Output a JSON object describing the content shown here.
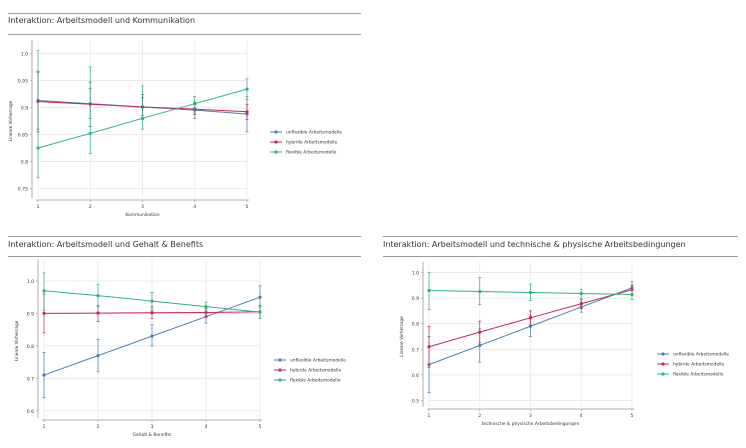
{
  "colors": {
    "unflexible": "#4a7fb4",
    "hybride": "#c9245b",
    "flexible": "#2db37a",
    "grid": "#e6e6e6",
    "axis": "#999999"
  },
  "chart_data": [
    {
      "type": "line",
      "title": "Interaktion: Arbeitsmodell und Kommunikation",
      "xlabel": "Kommunikation",
      "ylabel": "Lineare Vorhersage",
      "x": [
        1,
        2,
        3,
        4,
        5
      ],
      "x_ticks": [
        "1",
        "2",
        "3",
        "4",
        "5"
      ],
      "ylim": [
        0.74,
        1.01
      ],
      "y_ticks": [
        0.75,
        0.8,
        0.85,
        0.9,
        0.95,
        1.0
      ],
      "y_tick_labels": [
        "0.75",
        "0.8",
        "0.85",
        "0.9",
        "0.95",
        "1.0"
      ],
      "grid": true,
      "legend_position": "right",
      "series": [
        {
          "name": "unflexible Arbeitsmodelle",
          "color_key": "unflexible",
          "values": [
            0.913,
            0.907,
            0.901,
            0.895,
            0.888
          ],
          "ci_low": [
            0.86,
            0.88,
            0.885,
            0.88,
            0.855
          ],
          "ci_high": [
            0.965,
            0.935,
            0.918,
            0.91,
            0.92
          ]
        },
        {
          "name": "hybride Arbeitsmodelle",
          "color_key": "hybride",
          "values": [
            0.911,
            0.906,
            0.901,
            0.897,
            0.892
          ],
          "ci_low": [
            0.855,
            0.865,
            0.878,
            0.887,
            0.878
          ],
          "ci_high": [
            0.967,
            0.947,
            0.924,
            0.908,
            0.906
          ]
        },
        {
          "name": "flexible Arbeitsmodelle",
          "color_key": "flexible",
          "values": [
            0.825,
            0.852,
            0.88,
            0.907,
            0.934
          ],
          "ci_low": [
            0.77,
            0.815,
            0.86,
            0.89,
            0.915
          ],
          "ci_high": [
            1.005,
            0.975,
            0.94,
            0.92,
            0.953
          ]
        }
      ]
    },
    {
      "type": "line",
      "title": "Interaktion: Arbeitsmodell und Gehalt & Benefits",
      "xlabel": "Gehalt & Benefits",
      "ylabel": "Lineare Vorhersage",
      "x": [
        1,
        2,
        3,
        4,
        5
      ],
      "x_ticks": [
        "1",
        "2",
        "3",
        "4",
        "5"
      ],
      "ylim": [
        0.59,
        1.04
      ],
      "y_ticks": [
        0.6,
        0.7,
        0.8,
        0.9,
        1.0
      ],
      "y_tick_labels": [
        "0.6",
        "0.7",
        "0.8",
        "0.9",
        "1.0"
      ],
      "grid": true,
      "legend_position": "right",
      "series": [
        {
          "name": "unflexible Arbeitsmodelle",
          "color_key": "unflexible",
          "values": [
            0.71,
            0.77,
            0.83,
            0.89,
            0.95
          ],
          "ci_low": [
            0.64,
            0.72,
            0.8,
            0.87,
            0.92
          ],
          "ci_high": [
            0.78,
            0.82,
            0.865,
            0.91,
            0.985
          ]
        },
        {
          "name": "hybride Arbeitsmodelle",
          "color_key": "hybride",
          "values": [
            0.9,
            0.901,
            0.902,
            0.903,
            0.905
          ],
          "ci_low": [
            0.84,
            0.875,
            0.885,
            0.89,
            0.885
          ],
          "ci_high": [
            0.96,
            0.925,
            0.92,
            0.915,
            0.925
          ]
        },
        {
          "name": "flexible Arbeitsmodelle",
          "color_key": "flexible",
          "values": [
            0.97,
            0.955,
            0.938,
            0.921,
            0.904
          ],
          "ci_low": [
            0.91,
            0.92,
            0.91,
            0.905,
            0.885
          ],
          "ci_high": [
            1.025,
            0.99,
            0.965,
            0.935,
            0.92
          ]
        }
      ]
    },
    {
      "type": "line",
      "title": "Interaktion: Arbeitsmodell und technische & physische Arbeitsbedingungen",
      "xlabel": "technische & physische Arbeitsbedingungen",
      "ylabel": "Lineare Vorhersage",
      "x": [
        1,
        2,
        3,
        4,
        5
      ],
      "x_ticks": [
        "1",
        "2",
        "3",
        "4",
        "5"
      ],
      "ylim": [
        0.49,
        1.01
      ],
      "y_ticks": [
        0.5,
        0.6,
        0.7,
        0.8,
        0.9,
        1.0
      ],
      "y_tick_labels": [
        "0.5",
        "0.6",
        "0.7",
        "0.8",
        "0.9",
        "1.0"
      ],
      "grid": true,
      "legend_position": "right",
      "series": [
        {
          "name": "unflexible Arbeitsmodelle",
          "color_key": "unflexible",
          "values": [
            0.64,
            0.715,
            0.79,
            0.865,
            0.94
          ],
          "ci_low": [
            0.53,
            0.65,
            0.75,
            0.845,
            0.915
          ],
          "ci_high": [
            0.75,
            0.78,
            0.83,
            0.885,
            0.965
          ]
        },
        {
          "name": "hybride Arbeitsmodelle",
          "color_key": "hybride",
          "values": [
            0.71,
            0.767,
            0.823,
            0.878,
            0.933
          ],
          "ci_low": [
            0.63,
            0.725,
            0.795,
            0.86,
            0.915
          ],
          "ci_high": [
            0.79,
            0.81,
            0.85,
            0.895,
            0.95
          ]
        },
        {
          "name": "flexible Arbeitsmodelle",
          "color_key": "flexible",
          "values": [
            0.93,
            0.926,
            0.922,
            0.918,
            0.914
          ],
          "ci_low": [
            0.855,
            0.875,
            0.89,
            0.9,
            0.895
          ],
          "ci_high": [
            1.0,
            0.98,
            0.955,
            0.935,
            0.935
          ]
        }
      ]
    }
  ]
}
